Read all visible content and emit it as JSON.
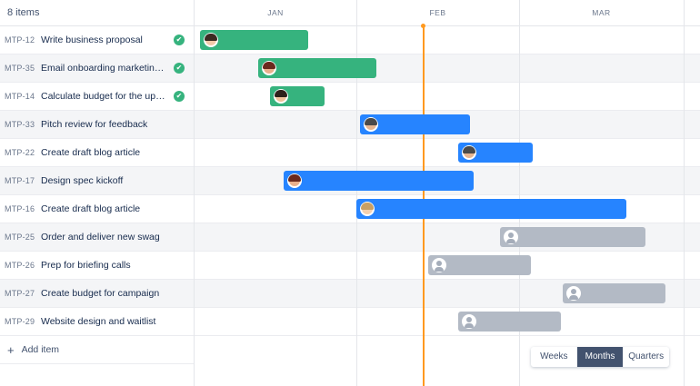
{
  "header": {
    "items_count": "8 items"
  },
  "timeline": {
    "months": [
      "JAN",
      "FEB",
      "MAR"
    ],
    "today_color": "#ff991f"
  },
  "issues": [
    {
      "key": "MTP-12",
      "summary": "Write business proposal",
      "done": true,
      "bar_color": "#36b37e",
      "assignee": "photo-1"
    },
    {
      "key": "MTP-35",
      "summary": "Email onboarding marketing...",
      "done": true,
      "bar_color": "#36b37e",
      "assignee": "photo-2"
    },
    {
      "key": "MTP-14",
      "summary": "Calculate budget for the upc...",
      "done": true,
      "bar_color": "#36b37e",
      "assignee": "photo-3"
    },
    {
      "key": "MTP-33",
      "summary": "Pitch review for feedback",
      "done": false,
      "bar_color": "#2684ff",
      "assignee": "photo-4"
    },
    {
      "key": "MTP-22",
      "summary": "Create draft blog article",
      "done": false,
      "bar_color": "#2684ff",
      "assignee": "photo-4"
    },
    {
      "key": "MTP-17",
      "summary": "Design spec kickoff",
      "done": false,
      "bar_color": "#2684ff",
      "assignee": "photo-2"
    },
    {
      "key": "MTP-16",
      "summary": "Create draft blog article",
      "done": false,
      "bar_color": "#2684ff",
      "assignee": "photo-5"
    },
    {
      "key": "MTP-25",
      "summary": "Order and deliver new swag",
      "done": false,
      "bar_color": "#b3bac5",
      "assignee": "unassigned"
    },
    {
      "key": "MTP-26",
      "summary": "Prep for briefing calls",
      "done": false,
      "bar_color": "#b3bac5",
      "assignee": "unassigned"
    },
    {
      "key": "MTP-27",
      "summary": "Create budget for campaign",
      "done": false,
      "bar_color": "#b3bac5",
      "assignee": "unassigned"
    },
    {
      "key": "MTP-29",
      "summary": "Website design and waitlist",
      "done": false,
      "bar_color": "#b3bac5",
      "assignee": "unassigned"
    }
  ],
  "add_item": {
    "label": "Add item",
    "icon": "plus-icon"
  },
  "zoom": {
    "options": [
      "Weeks",
      "Months",
      "Quarters"
    ],
    "selected": "Months"
  }
}
